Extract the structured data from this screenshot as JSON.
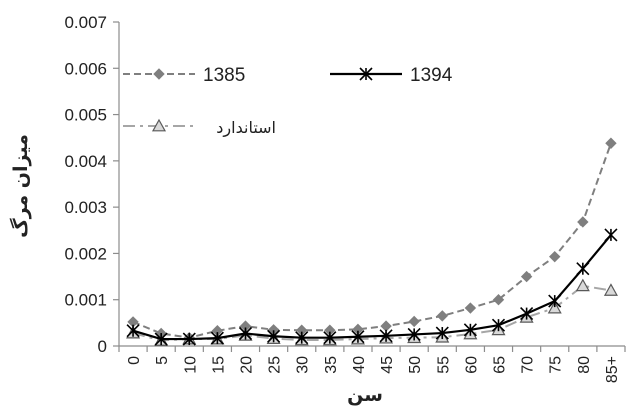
{
  "chart_data": {
    "type": "line",
    "categories": [
      "0",
      "5",
      "10",
      "15",
      "20",
      "25",
      "30",
      "35",
      "40",
      "45",
      "50",
      "55",
      "60",
      "65",
      "70",
      "75",
      "80",
      "85+"
    ],
    "xlabel": "سن",
    "ylabel": "میزان مرگ",
    "ylim": [
      0,
      0.007
    ],
    "yticks": [
      "0",
      "0.001",
      "0.002",
      "0.003",
      "0.004",
      "0.005",
      "0.006",
      "0.007"
    ],
    "grid": false,
    "legend_placement": "top-left",
    "series": [
      {
        "name": "1385",
        "style": "dashed",
        "marker": "diamond",
        "color": "#7f7f7f",
        "values": [
          0.00052,
          0.00027,
          0.00018,
          0.00033,
          0.00043,
          0.00035,
          0.00034,
          0.00034,
          0.00036,
          0.00043,
          0.00053,
          0.00065,
          0.00082,
          0.001,
          0.0015,
          0.00193,
          0.00268,
          0.00438
        ]
      },
      {
        "name": "1394",
        "style": "solid",
        "marker": "star",
        "color": "#000000",
        "values": [
          0.00033,
          0.00015,
          0.00015,
          0.00017,
          0.00027,
          0.00021,
          0.00018,
          0.00018,
          0.0002,
          0.00022,
          0.00025,
          0.00028,
          0.00035,
          0.00045,
          0.0007,
          0.00097,
          0.00167,
          0.0024
        ]
      },
      {
        "name": "استاندارد",
        "style": "dash-dot",
        "marker": "triangle",
        "color": "#a6a6a6",
        "values": [
          0.00028,
          0.00012,
          0.00015,
          0.00015,
          0.00023,
          0.00016,
          0.00013,
          0.00013,
          0.00015,
          0.00017,
          0.00018,
          0.00019,
          0.00026,
          0.00035,
          0.00062,
          0.00082,
          0.0013,
          0.0012
        ]
      }
    ]
  }
}
